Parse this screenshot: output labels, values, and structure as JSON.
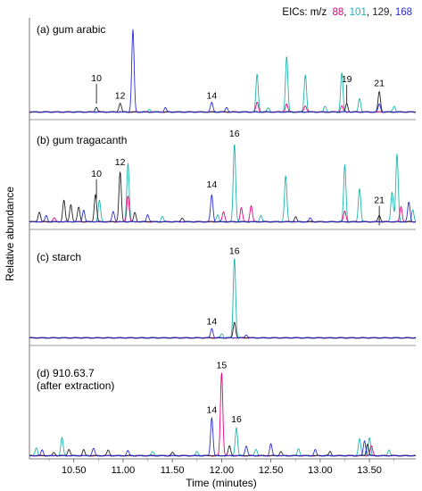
{
  "legend": {
    "prefix": "EICs: m/z",
    "entries": [
      {
        "text": "88",
        "color": "#e6007e"
      },
      {
        "text": "101",
        "color": "#1ab5b0"
      },
      {
        "text": "129",
        "color": "#222222"
      },
      {
        "text": "168",
        "color": "#2b2bd6"
      }
    ]
  },
  "chart_data": {
    "type": "line",
    "xlabel": "Time (minutes)",
    "ylabel": "Relative abundance",
    "xlim": [
      10.05,
      13.97
    ],
    "xticks": [
      "10.50",
      "11.00",
      "11.50",
      "12.00",
      "12.50",
      "13.00",
      "13.50"
    ],
    "xtick_values": [
      10.5,
      11.0,
      11.5,
      12.0,
      12.5,
      13.0,
      13.5
    ],
    "grid": false,
    "legend_position": "top-right",
    "series_colors": {
      "88": "#e6007e",
      "101": "#1ab5b0",
      "129": "#222222",
      "168": "#2b2bd6"
    },
    "panels": [
      {
        "title_lines": [
          "(a) gum arabic"
        ],
        "peaks": [
          {
            "t": 10.73,
            "h": 0.06,
            "s": "129"
          },
          {
            "t": 10.97,
            "h": 0.11,
            "s": "129"
          },
          {
            "t": 11.1,
            "h": 1.0,
            "s": "168"
          },
          {
            "t": 11.27,
            "h": 0.03,
            "s": "101"
          },
          {
            "t": 11.43,
            "h": 0.05,
            "s": "168"
          },
          {
            "t": 11.9,
            "h": 0.12,
            "s": "168"
          },
          {
            "t": 12.05,
            "h": 0.06,
            "s": "168"
          },
          {
            "t": 12.36,
            "h": 0.46,
            "s": "101"
          },
          {
            "t": 12.36,
            "h": 0.12,
            "s": "88"
          },
          {
            "t": 12.47,
            "h": 0.05,
            "s": "101"
          },
          {
            "t": 12.66,
            "h": 0.68,
            "s": "101"
          },
          {
            "t": 12.66,
            "h": 0.1,
            "s": "88"
          },
          {
            "t": 12.85,
            "h": 0.45,
            "s": "101"
          },
          {
            "t": 12.85,
            "h": 0.08,
            "s": "88"
          },
          {
            "t": 13.05,
            "h": 0.07,
            "s": "101"
          },
          {
            "t": 13.22,
            "h": 0.48,
            "s": "101"
          },
          {
            "t": 13.22,
            "h": 0.08,
            "s": "88"
          },
          {
            "t": 13.27,
            "h": 0.1,
            "s": "129"
          },
          {
            "t": 13.4,
            "h": 0.16,
            "s": "101"
          },
          {
            "t": 13.6,
            "h": 0.25,
            "s": "129"
          },
          {
            "t": 13.6,
            "h": 0.1,
            "s": "168"
          },
          {
            "t": 13.75,
            "h": 0.07,
            "s": "101"
          }
        ],
        "labels": [
          {
            "text": "10",
            "t": 10.73,
            "h": 0.38,
            "bracket": true
          },
          {
            "text": "12",
            "t": 10.97,
            "h": 0.17,
            "bracket": false
          },
          {
            "text": "14",
            "t": 11.9,
            "h": 0.17,
            "bracket": false
          },
          {
            "text": "19",
            "t": 13.27,
            "h": 0.37,
            "bracket": true
          },
          {
            "text": "21",
            "t": 13.6,
            "h": 0.32,
            "bracket": false
          }
        ]
      },
      {
        "title_lines": [
          "(b) gum tragacanth"
        ],
        "peaks": [
          {
            "t": 10.15,
            "h": 0.12,
            "s": "129"
          },
          {
            "t": 10.22,
            "h": 0.08,
            "s": "168"
          },
          {
            "t": 10.3,
            "h": 0.05,
            "s": "88"
          },
          {
            "t": 10.4,
            "h": 0.26,
            "s": "129"
          },
          {
            "t": 10.47,
            "h": 0.21,
            "s": "129"
          },
          {
            "t": 10.55,
            "h": 0.18,
            "s": "129"
          },
          {
            "t": 10.6,
            "h": 0.14,
            "s": "168"
          },
          {
            "t": 10.72,
            "h": 0.33,
            "s": "129"
          },
          {
            "t": 10.76,
            "h": 0.26,
            "s": "101"
          },
          {
            "t": 10.9,
            "h": 0.13,
            "s": "168"
          },
          {
            "t": 10.97,
            "h": 0.6,
            "s": "129"
          },
          {
            "t": 11.05,
            "h": 0.71,
            "s": "101"
          },
          {
            "t": 11.05,
            "h": 0.31,
            "s": "88"
          },
          {
            "t": 11.12,
            "h": 0.11,
            "s": "129"
          },
          {
            "t": 11.25,
            "h": 0.09,
            "s": "168"
          },
          {
            "t": 11.4,
            "h": 0.07,
            "s": "101"
          },
          {
            "t": 11.6,
            "h": 0.05,
            "s": "129"
          },
          {
            "t": 11.9,
            "h": 0.33,
            "s": "168"
          },
          {
            "t": 11.96,
            "h": 0.09,
            "s": "101"
          },
          {
            "t": 12.02,
            "h": 0.12,
            "s": "88"
          },
          {
            "t": 12.13,
            "h": 0.94,
            "s": "101"
          },
          {
            "t": 12.2,
            "h": 0.17,
            "s": "88"
          },
          {
            "t": 12.3,
            "h": 0.2,
            "s": "88"
          },
          {
            "t": 12.4,
            "h": 0.08,
            "s": "101"
          },
          {
            "t": 12.65,
            "h": 0.56,
            "s": "101"
          },
          {
            "t": 12.75,
            "h": 0.06,
            "s": "129"
          },
          {
            "t": 12.9,
            "h": 0.05,
            "s": "168"
          },
          {
            "t": 13.25,
            "h": 0.68,
            "s": "101"
          },
          {
            "t": 13.25,
            "h": 0.13,
            "s": "88"
          },
          {
            "t": 13.4,
            "h": 0.4,
            "s": "101"
          },
          {
            "t": 13.6,
            "h": 0.08,
            "s": "129"
          },
          {
            "t": 13.73,
            "h": 0.36,
            "s": "101"
          },
          {
            "t": 13.78,
            "h": 0.82,
            "s": "101"
          },
          {
            "t": 13.82,
            "h": 0.18,
            "s": "88"
          },
          {
            "t": 13.9,
            "h": 0.24,
            "s": "168"
          },
          {
            "t": 13.94,
            "h": 0.14,
            "s": "101"
          }
        ],
        "labels": [
          {
            "text": "10",
            "t": 10.73,
            "h": 0.55,
            "bracket": true
          },
          {
            "text": "12",
            "t": 10.97,
            "h": 0.69,
            "bracket": false
          },
          {
            "text": "14",
            "t": 11.9,
            "h": 0.42,
            "bracket": false
          },
          {
            "text": "16",
            "t": 12.13,
            "h": 1.03,
            "bracket": false
          },
          {
            "text": "21",
            "t": 13.6,
            "h": 0.23,
            "bracket": true
          }
        ]
      },
      {
        "title_lines": [
          "(c) starch"
        ],
        "peaks": [
          {
            "t": 11.9,
            "h": 0.12,
            "s": "168"
          },
          {
            "t": 12.0,
            "h": 0.05,
            "s": "101"
          },
          {
            "t": 12.13,
            "h": 1.0,
            "s": "101"
          },
          {
            "t": 12.13,
            "h": 0.2,
            "s": "129"
          },
          {
            "t": 12.25,
            "h": 0.04,
            "s": "168"
          }
        ],
        "labels": [
          {
            "text": "14",
            "t": 11.9,
            "h": 0.17,
            "bracket": false
          },
          {
            "text": "16",
            "t": 12.13,
            "h": 1.05,
            "bracket": false
          }
        ]
      },
      {
        "title_lines": [
          "(d) 910.63.7",
          "(after extraction)"
        ],
        "peaks": [
          {
            "t": 10.12,
            "h": 0.1,
            "s": "101"
          },
          {
            "t": 10.18,
            "h": 0.07,
            "s": "168"
          },
          {
            "t": 10.3,
            "h": 0.04,
            "s": "129"
          },
          {
            "t": 10.38,
            "h": 0.22,
            "s": "101"
          },
          {
            "t": 10.45,
            "h": 0.08,
            "s": "129"
          },
          {
            "t": 10.6,
            "h": 0.07,
            "s": "129"
          },
          {
            "t": 10.7,
            "h": 0.09,
            "s": "168"
          },
          {
            "t": 10.85,
            "h": 0.07,
            "s": "129"
          },
          {
            "t": 11.05,
            "h": 0.06,
            "s": "168"
          },
          {
            "t": 11.3,
            "h": 0.05,
            "s": "101"
          },
          {
            "t": 11.5,
            "h": 0.04,
            "s": "129"
          },
          {
            "t": 11.75,
            "h": 0.05,
            "s": "101"
          },
          {
            "t": 11.9,
            "h": 0.46,
            "s": "168"
          },
          {
            "t": 12.0,
            "h": 1.0,
            "s": "88"
          },
          {
            "t": 12.08,
            "h": 0.12,
            "s": "129"
          },
          {
            "t": 12.15,
            "h": 0.34,
            "s": "101"
          },
          {
            "t": 12.25,
            "h": 0.12,
            "s": "168"
          },
          {
            "t": 12.35,
            "h": 0.08,
            "s": "101"
          },
          {
            "t": 12.5,
            "h": 0.14,
            "s": "168"
          },
          {
            "t": 12.6,
            "h": 0.05,
            "s": "129"
          },
          {
            "t": 12.78,
            "h": 0.08,
            "s": "101"
          },
          {
            "t": 12.95,
            "h": 0.07,
            "s": "168"
          },
          {
            "t": 13.1,
            "h": 0.05,
            "s": "129"
          },
          {
            "t": 13.4,
            "h": 0.21,
            "s": "101"
          },
          {
            "t": 13.45,
            "h": 0.18,
            "s": "168"
          },
          {
            "t": 13.5,
            "h": 0.22,
            "s": "101"
          },
          {
            "t": 13.48,
            "h": 0.14,
            "s": "129"
          },
          {
            "t": 13.52,
            "h": 0.12,
            "s": "88"
          },
          {
            "t": 13.7,
            "h": 0.07,
            "s": "101"
          }
        ],
        "labels": [
          {
            "text": "14",
            "t": 11.9,
            "h": 0.52,
            "bracket": false
          },
          {
            "text": "15",
            "t": 12.0,
            "h": 1.06,
            "bracket": false
          },
          {
            "text": "16",
            "t": 12.15,
            "h": 0.41,
            "bracket": false
          }
        ]
      }
    ]
  }
}
